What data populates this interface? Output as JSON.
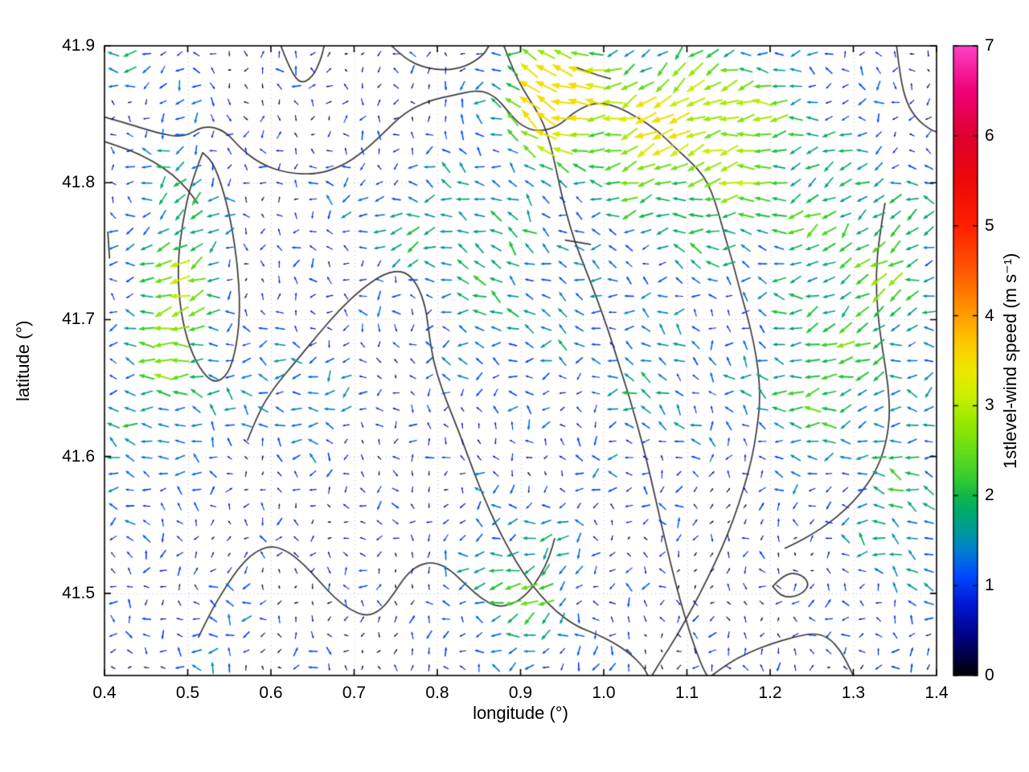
{
  "chart_data": {
    "type": "quiver",
    "title": "",
    "xlabel": "longitude (°)",
    "ylabel": "latitude (°)",
    "xlim": [
      0.4,
      1.4
    ],
    "ylim": [
      41.44,
      41.9
    ],
    "grid_dotted": true,
    "x_ticks": [
      {
        "v": 0.4,
        "label": "0.4"
      },
      {
        "v": 0.5,
        "label": "0.5"
      },
      {
        "v": 0.6,
        "label": "0.6"
      },
      {
        "v": 0.7,
        "label": "0.7"
      },
      {
        "v": 0.8,
        "label": "0.8"
      },
      {
        "v": 0.9,
        "label": "0.9"
      },
      {
        "v": 1.0,
        "label": "1.0"
      },
      {
        "v": 1.1,
        "label": "1.1"
      },
      {
        "v": 1.2,
        "label": "1.2"
      },
      {
        "v": 1.3,
        "label": "1.3"
      },
      {
        "v": 1.4,
        "label": "1.4"
      }
    ],
    "y_ticks": [
      {
        "v": 41.5,
        "label": "41.5"
      },
      {
        "v": 41.6,
        "label": "41.6"
      },
      {
        "v": 41.7,
        "label": "41.7"
      },
      {
        "v": 41.8,
        "label": "41.8"
      },
      {
        "v": 41.9,
        "label": "41.9"
      }
    ],
    "colorbar": {
      "label": "1stlevel-wind speed (m s⁻¹)",
      "min": 0,
      "max": 7,
      "ticks": [
        {
          "v": 0,
          "label": "0"
        },
        {
          "v": 1,
          "label": "1"
        },
        {
          "v": 2,
          "label": "2"
        },
        {
          "v": 3,
          "label": "3"
        },
        {
          "v": 4,
          "label": "4"
        },
        {
          "v": 5,
          "label": "5"
        },
        {
          "v": 6,
          "label": "6"
        },
        {
          "v": 7,
          "label": "7"
        }
      ],
      "stops": [
        {
          "v": 0.0,
          "c": "#000006"
        },
        {
          "v": 0.4,
          "c": "#00007a"
        },
        {
          "v": 0.8,
          "c": "#0018d8"
        },
        {
          "v": 1.1,
          "c": "#0048ff"
        },
        {
          "v": 1.4,
          "c": "#0080d0"
        },
        {
          "v": 1.6,
          "c": "#00989b"
        },
        {
          "v": 1.8,
          "c": "#00a86e"
        },
        {
          "v": 2.0,
          "c": "#10b848"
        },
        {
          "v": 2.2,
          "c": "#38cc30"
        },
        {
          "v": 2.5,
          "c": "#66dd18"
        },
        {
          "v": 2.8,
          "c": "#95e800"
        },
        {
          "v": 3.1,
          "c": "#c8f000"
        },
        {
          "v": 3.4,
          "c": "#eee800"
        },
        {
          "v": 3.7,
          "c": "#ffc800"
        },
        {
          "v": 4.1,
          "c": "#ff9000"
        },
        {
          "v": 4.5,
          "c": "#ff5800"
        },
        {
          "v": 5.0,
          "c": "#ff2000"
        },
        {
          "v": 5.5,
          "c": "#ee0808"
        },
        {
          "v": 6.0,
          "c": "#e00030"
        },
        {
          "v": 6.5,
          "c": "#f00078"
        },
        {
          "v": 7.0,
          "c": "#ff40c8"
        }
      ]
    },
    "vector_field": {
      "nx": 50,
      "ny": 39,
      "seed": 1337,
      "base_speed": 0.52,
      "mean_direction_deg": 180,
      "contour_color": "#3a3a3a",
      "speed_patches": [
        {
          "cx": 0.495,
          "cy": 41.725,
          "sx": 0.032,
          "sy": 0.08,
          "amp": 1.85
        },
        {
          "cx": 0.45,
          "cy": 41.69,
          "sx": 0.03,
          "sy": 0.05,
          "amp": 1.0
        },
        {
          "cx": 0.93,
          "cy": 41.862,
          "sx": 0.028,
          "sy": 0.022,
          "amp": 2.6
        },
        {
          "cx": 1.0,
          "cy": 41.845,
          "sx": 0.09,
          "sy": 0.03,
          "amp": 1.6
        },
        {
          "cx": 1.14,
          "cy": 41.805,
          "sx": 0.1,
          "sy": 0.048,
          "amp": 1.85
        },
        {
          "cx": 0.95,
          "cy": 41.885,
          "sx": 0.05,
          "sy": 0.02,
          "amp": 1.3
        },
        {
          "cx": 1.13,
          "cy": 41.87,
          "sx": 0.07,
          "sy": 0.025,
          "amp": 1.2
        },
        {
          "cx": 1.33,
          "cy": 41.73,
          "sx": 0.07,
          "sy": 0.055,
          "amp": 1.6
        },
        {
          "cx": 1.24,
          "cy": 41.645,
          "sx": 0.05,
          "sy": 0.04,
          "amp": 1.35
        },
        {
          "cx": 1.36,
          "cy": 41.56,
          "sx": 0.045,
          "sy": 0.05,
          "amp": 1.3
        },
        {
          "cx": 0.9,
          "cy": 41.505,
          "sx": 0.05,
          "sy": 0.042,
          "amp": 1.55
        },
        {
          "cx": 0.62,
          "cy": 41.645,
          "sx": 0.055,
          "sy": 0.028,
          "amp": 1.0
        },
        {
          "cx": 0.88,
          "cy": 41.72,
          "sx": 0.075,
          "sy": 0.05,
          "amp": 1.1
        },
        {
          "cx": 0.77,
          "cy": 41.775,
          "sx": 0.085,
          "sy": 0.028,
          "amp": 0.75
        },
        {
          "cx": 1.06,
          "cy": 41.65,
          "sx": 0.05,
          "sy": 0.045,
          "amp": 1.0
        },
        {
          "cx": 0.42,
          "cy": 41.58,
          "sx": 0.025,
          "sy": 0.035,
          "amp": 0.9
        },
        {
          "cx": 0.53,
          "cy": 41.47,
          "sx": 0.04,
          "sy": 0.03,
          "amp": 0.6
        },
        {
          "cx": 0.425,
          "cy": 41.885,
          "sx": 0.02,
          "sy": 0.015,
          "amp": 1.2
        }
      ]
    },
    "contours": [
      [
        [
          0.4,
          41.848
        ],
        [
          0.435,
          41.842
        ],
        [
          0.465,
          41.836
        ],
        [
          0.495,
          41.833
        ],
        [
          0.52,
          41.842
        ],
        [
          0.545,
          41.838
        ],
        [
          0.565,
          41.824
        ],
        [
          0.59,
          41.813
        ],
        [
          0.62,
          41.807
        ],
        [
          0.655,
          41.806
        ],
        [
          0.685,
          41.812
        ],
        [
          0.71,
          41.822
        ],
        [
          0.735,
          41.836
        ],
        [
          0.76,
          41.851
        ],
        [
          0.79,
          41.86
        ],
        [
          0.82,
          41.864
        ],
        [
          0.85,
          41.868
        ],
        [
          0.87,
          41.863
        ],
        [
          0.885,
          41.852
        ],
        [
          0.9,
          41.842
        ],
        [
          0.92,
          41.837
        ],
        [
          0.945,
          41.841
        ],
        [
          0.965,
          41.852
        ],
        [
          0.99,
          41.859
        ],
        [
          1.015,
          41.856
        ],
        [
          1.04,
          41.848
        ],
        [
          1.065,
          41.838
        ],
        [
          1.085,
          41.826
        ],
        [
          1.105,
          41.815
        ],
        [
          1.12,
          41.805
        ],
        [
          1.13,
          41.793
        ],
        [
          1.138,
          41.778
        ],
        [
          1.146,
          41.76
        ],
        [
          1.155,
          41.742
        ],
        [
          1.163,
          41.723
        ],
        [
          1.172,
          41.704
        ],
        [
          1.18,
          41.684
        ],
        [
          1.186,
          41.663
        ],
        [
          1.188,
          41.641
        ],
        [
          1.184,
          41.619
        ],
        [
          1.178,
          41.598
        ],
        [
          1.168,
          41.576
        ],
        [
          1.156,
          41.554
        ],
        [
          1.142,
          41.533
        ],
        [
          1.125,
          41.511
        ],
        [
          1.107,
          41.49
        ],
        [
          1.088,
          41.469
        ],
        [
          1.07,
          41.452
        ],
        [
          1.058,
          41.44
        ]
      ],
      [
        [
          0.4,
          41.83
        ],
        [
          0.43,
          41.824
        ],
        [
          0.458,
          41.816
        ],
        [
          0.482,
          41.806
        ],
        [
          0.5,
          41.795
        ],
        [
          0.512,
          41.785
        ]
      ],
      [
        [
          0.518,
          41.822
        ],
        [
          0.504,
          41.8
        ],
        [
          0.494,
          41.772
        ],
        [
          0.488,
          41.742
        ],
        [
          0.49,
          41.712
        ],
        [
          0.499,
          41.685
        ],
        [
          0.514,
          41.664
        ],
        [
          0.532,
          41.653
        ],
        [
          0.549,
          41.66
        ],
        [
          0.559,
          41.681
        ],
        [
          0.563,
          41.708
        ],
        [
          0.56,
          41.74
        ],
        [
          0.552,
          41.772
        ],
        [
          0.541,
          41.798
        ],
        [
          0.53,
          41.815
        ],
        [
          0.518,
          41.822
        ]
      ],
      [
        [
          0.612,
          41.9
        ],
        [
          0.622,
          41.884
        ],
        [
          0.635,
          41.872
        ],
        [
          0.65,
          41.877
        ],
        [
          0.66,
          41.89
        ],
        [
          0.664,
          41.9
        ]
      ],
      [
        [
          0.745,
          41.9
        ],
        [
          0.762,
          41.89
        ],
        [
          0.785,
          41.884
        ],
        [
          0.81,
          41.882
        ],
        [
          0.835,
          41.885
        ],
        [
          0.855,
          41.893
        ],
        [
          0.862,
          41.9
        ]
      ],
      [
        [
          0.968,
          41.884
        ],
        [
          0.99,
          41.879
        ],
        [
          1.008,
          41.876
        ]
      ],
      [
        [
          0.88,
          41.9
        ],
        [
          0.89,
          41.884
        ],
        [
          0.903,
          41.868
        ],
        [
          0.917,
          41.855
        ],
        [
          0.928,
          41.843
        ],
        [
          0.936,
          41.828
        ],
        [
          0.942,
          41.812
        ],
        [
          0.948,
          41.795
        ],
        [
          0.955,
          41.778
        ],
        [
          0.965,
          41.757
        ],
        [
          0.978,
          41.737
        ],
        [
          0.992,
          41.715
        ],
        [
          1.005,
          41.693
        ],
        [
          1.018,
          41.668
        ],
        [
          1.032,
          41.641
        ],
        [
          1.045,
          41.613
        ],
        [
          1.056,
          41.586
        ],
        [
          1.066,
          41.559
        ],
        [
          1.076,
          41.533
        ],
        [
          1.086,
          41.508
        ],
        [
          1.097,
          41.484
        ],
        [
          1.108,
          41.463
        ],
        [
          1.118,
          41.447
        ],
        [
          1.124,
          41.44
        ]
      ],
      [
        [
          0.572,
          41.612
        ],
        [
          0.585,
          41.632
        ],
        [
          0.603,
          41.65
        ],
        [
          0.628,
          41.668
        ],
        [
          0.655,
          41.688
        ],
        [
          0.682,
          41.707
        ],
        [
          0.71,
          41.723
        ],
        [
          0.737,
          41.734
        ],
        [
          0.76,
          41.736
        ],
        [
          0.776,
          41.726
        ],
        [
          0.786,
          41.709
        ],
        [
          0.79,
          41.69
        ],
        [
          0.795,
          41.67
        ],
        [
          0.805,
          41.65
        ],
        [
          0.818,
          41.63
        ],
        [
          0.831,
          41.61
        ],
        [
          0.843,
          41.59
        ],
        [
          0.856,
          41.57
        ],
        [
          0.87,
          41.551
        ],
        [
          0.886,
          41.532
        ],
        [
          0.904,
          41.514
        ],
        [
          0.923,
          41.499
        ],
        [
          0.944,
          41.486
        ],
        [
          0.967,
          41.476
        ],
        [
          0.992,
          41.47
        ],
        [
          1.012,
          41.464
        ],
        [
          1.032,
          41.456
        ],
        [
          1.048,
          41.446
        ],
        [
          1.053,
          41.44
        ]
      ],
      [
        [
          0.513,
          41.468
        ],
        [
          0.528,
          41.487
        ],
        [
          0.546,
          41.505
        ],
        [
          0.563,
          41.52
        ],
        [
          0.58,
          41.53
        ],
        [
          0.6,
          41.535
        ],
        [
          0.62,
          41.531
        ],
        [
          0.64,
          41.521
        ],
        [
          0.658,
          41.509
        ],
        [
          0.676,
          41.497
        ],
        [
          0.695,
          41.488
        ],
        [
          0.715,
          41.483
        ],
        [
          0.733,
          41.488
        ],
        [
          0.748,
          41.5
        ],
        [
          0.762,
          41.513
        ],
        [
          0.778,
          41.521
        ],
        [
          0.797,
          41.523
        ],
        [
          0.816,
          41.517
        ],
        [
          0.835,
          41.506
        ],
        [
          0.853,
          41.496
        ],
        [
          0.872,
          41.49
        ],
        [
          0.891,
          41.492
        ],
        [
          0.909,
          41.5
        ],
        [
          0.924,
          41.513
        ],
        [
          0.935,
          41.527
        ],
        [
          0.941,
          41.54
        ]
      ],
      [
        [
          1.13,
          41.44
        ],
        [
          1.15,
          41.449
        ],
        [
          1.175,
          41.457
        ],
        [
          1.2,
          41.463
        ],
        [
          1.228,
          41.468
        ],
        [
          1.252,
          41.471
        ],
        [
          1.27,
          41.468
        ],
        [
          1.285,
          41.458
        ],
        [
          1.295,
          41.446
        ],
        [
          1.3,
          41.44
        ]
      ],
      [
        [
          1.203,
          41.505
        ],
        [
          1.218,
          41.515
        ],
        [
          1.238,
          41.514
        ],
        [
          1.248,
          41.506
        ],
        [
          1.235,
          41.498
        ],
        [
          1.215,
          41.497
        ],
        [
          1.203,
          41.505
        ]
      ],
      [
        [
          1.338,
          41.785
        ],
        [
          1.331,
          41.76
        ],
        [
          1.327,
          41.733
        ],
        [
          1.329,
          41.705
        ],
        [
          1.335,
          41.678
        ],
        [
          1.342,
          41.652
        ],
        [
          1.344,
          41.628
        ],
        [
          1.338,
          41.606
        ],
        [
          1.326,
          41.588
        ],
        [
          1.309,
          41.573
        ],
        [
          1.29,
          41.561
        ],
        [
          1.27,
          41.551
        ],
        [
          1.25,
          41.543
        ],
        [
          1.232,
          41.537
        ],
        [
          1.218,
          41.533
        ]
      ],
      [
        [
          1.352,
          41.9
        ],
        [
          1.356,
          41.878
        ],
        [
          1.364,
          41.858
        ],
        [
          1.377,
          41.846
        ],
        [
          1.392,
          41.839
        ],
        [
          1.4,
          41.837
        ]
      ],
      [
        [
          0.404,
          41.764
        ],
        [
          0.406,
          41.745
        ]
      ],
      [
        [
          0.954,
          41.758
        ],
        [
          0.984,
          41.755
        ]
      ]
    ]
  }
}
